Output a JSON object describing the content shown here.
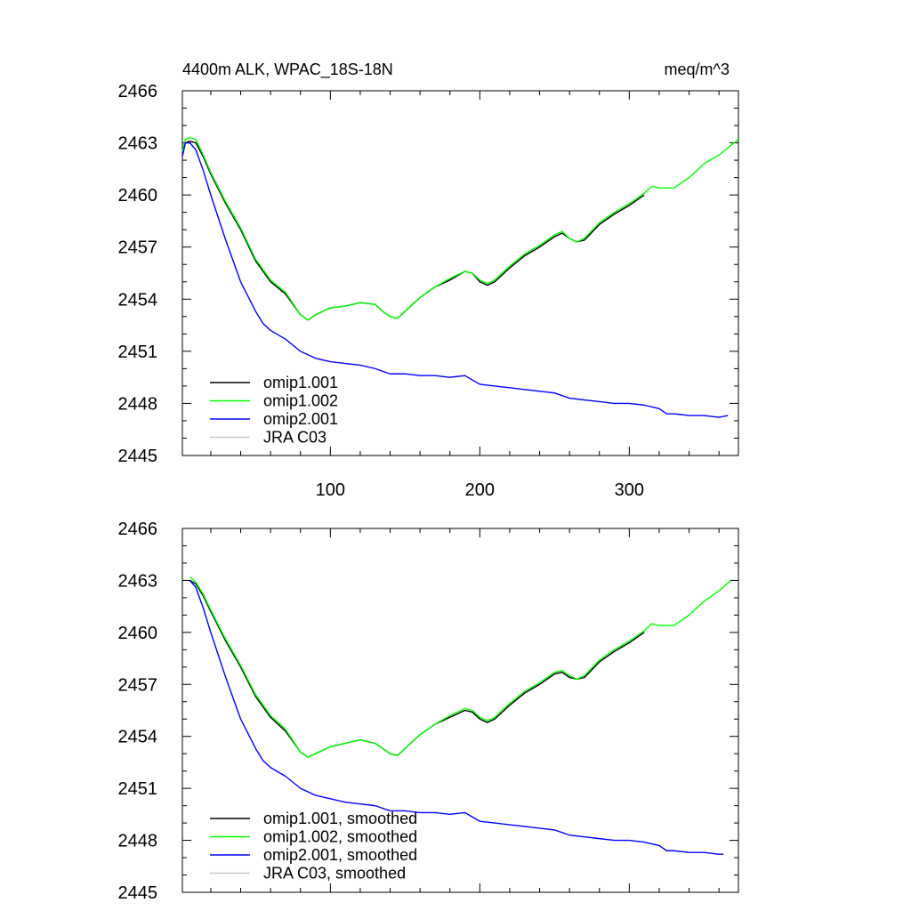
{
  "chart_data": [
    {
      "type": "line",
      "title": "4400m ALK, WPAC_18S-18N",
      "units": "meq/m^3",
      "xlabel": "",
      "ylabel": "",
      "xlim": [
        1,
        373
      ],
      "ylim": [
        2445,
        2466
      ],
      "xticks": [
        100,
        200,
        300
      ],
      "yticks": [
        2445,
        2448,
        2451,
        2454,
        2457,
        2460,
        2463,
        2466
      ],
      "show_x_tick_labels": true,
      "legend": "bottom-left",
      "series": [
        {
          "name": "omip1.001",
          "color": "#000000",
          "x": [
            1,
            3,
            6,
            10,
            15,
            20,
            30,
            40,
            50,
            60,
            70,
            80,
            85,
            90,
            100,
            110,
            120,
            130,
            135,
            140,
            145,
            150,
            160,
            170,
            180,
            190,
            195,
            200,
            205,
            210,
            220,
            230,
            240,
            250,
            255,
            260,
            265,
            270,
            280,
            290,
            300,
            310
          ],
          "values": [
            2462.3,
            2463.0,
            2463.1,
            2463.0,
            2462.2,
            2461.2,
            2459.5,
            2458.0,
            2456.2,
            2455.0,
            2454.3,
            2453.1,
            2452.8,
            2453.1,
            2453.5,
            2453.6,
            2453.8,
            2453.7,
            2453.3,
            2453.0,
            2452.9,
            2453.3,
            2454.1,
            2454.7,
            2455.1,
            2455.6,
            2455.5,
            2455.0,
            2454.8,
            2455.0,
            2455.8,
            2456.5,
            2457.0,
            2457.6,
            2457.8,
            2457.5,
            2457.3,
            2457.4,
            2458.3,
            2458.9,
            2459.4,
            2460.0
          ]
        },
        {
          "name": "omip1.002",
          "color": "#00ff00",
          "x": [
            1,
            3,
            6,
            10,
            15,
            20,
            30,
            40,
            50,
            60,
            70,
            80,
            85,
            90,
            100,
            110,
            120,
            130,
            135,
            140,
            145,
            150,
            160,
            170,
            180,
            190,
            195,
            200,
            205,
            210,
            220,
            230,
            240,
            250,
            255,
            260,
            265,
            270,
            280,
            290,
            300,
            310,
            315,
            320,
            330,
            340,
            350,
            360,
            373
          ],
          "values": [
            2462.5,
            2463.2,
            2463.3,
            2463.2,
            2462.3,
            2461.3,
            2459.6,
            2458.1,
            2456.3,
            2455.1,
            2454.4,
            2453.1,
            2452.8,
            2453.1,
            2453.5,
            2453.6,
            2453.8,
            2453.7,
            2453.3,
            2453.0,
            2452.9,
            2453.3,
            2454.1,
            2454.7,
            2455.2,
            2455.6,
            2455.5,
            2455.1,
            2454.9,
            2455.1,
            2455.9,
            2456.6,
            2457.1,
            2457.7,
            2457.9,
            2457.5,
            2457.3,
            2457.5,
            2458.4,
            2459.0,
            2459.5,
            2460.1,
            2460.5,
            2460.4,
            2460.4,
            2461.0,
            2461.8,
            2462.3,
            2463.2
          ]
        },
        {
          "name": "omip2.001",
          "color": "#0000ff",
          "x": [
            1,
            3,
            6,
            10,
            15,
            20,
            30,
            40,
            50,
            55,
            60,
            70,
            80,
            90,
            100,
            110,
            120,
            130,
            140,
            150,
            160,
            170,
            180,
            190,
            200,
            210,
            220,
            230,
            240,
            250,
            260,
            270,
            280,
            290,
            300,
            310,
            320,
            325,
            330,
            340,
            350,
            360,
            366
          ],
          "values": [
            2462.2,
            2463.0,
            2463.0,
            2462.6,
            2461.4,
            2460.0,
            2457.4,
            2455.0,
            2453.3,
            2452.6,
            2452.2,
            2451.7,
            2451.0,
            2450.6,
            2450.4,
            2450.3,
            2450.2,
            2450.0,
            2449.7,
            2449.7,
            2449.6,
            2449.6,
            2449.5,
            2449.6,
            2449.1,
            2449.0,
            2448.9,
            2448.8,
            2448.7,
            2448.6,
            2448.3,
            2448.2,
            2448.1,
            2448.0,
            2448.0,
            2447.9,
            2447.7,
            2447.4,
            2447.4,
            2447.3,
            2447.3,
            2447.2,
            2447.3
          ]
        },
        {
          "name": "JRA C03",
          "color": "#c8c8c8",
          "x": [],
          "values": []
        }
      ]
    },
    {
      "type": "line",
      "title": "",
      "xlabel": "",
      "ylabel": "",
      "xlim": [
        1,
        373
      ],
      "ylim": [
        2445,
        2466
      ],
      "xticks": [
        100,
        200,
        300
      ],
      "yticks": [
        2445,
        2448,
        2451,
        2454,
        2457,
        2460,
        2463,
        2466
      ],
      "show_x_tick_labels": false,
      "legend": "bottom-left",
      "series": [
        {
          "name": "omip1.001, smoothed",
          "color": "#000000",
          "x": [
            6,
            10,
            15,
            20,
            30,
            40,
            50,
            60,
            70,
            80,
            85,
            90,
            100,
            110,
            120,
            130,
            135,
            140,
            145,
            150,
            160,
            170,
            180,
            190,
            195,
            200,
            205,
            210,
            220,
            230,
            240,
            250,
            255,
            260,
            265,
            270,
            280,
            290,
            300,
            310
          ],
          "values": [
            2463.0,
            2462.8,
            2462.1,
            2461.2,
            2459.5,
            2458.0,
            2456.3,
            2455.1,
            2454.3,
            2453.1,
            2452.8,
            2453.0,
            2453.4,
            2453.6,
            2453.8,
            2453.6,
            2453.3,
            2453.0,
            2452.9,
            2453.3,
            2454.1,
            2454.7,
            2455.1,
            2455.5,
            2455.4,
            2455.0,
            2454.8,
            2455.0,
            2455.8,
            2456.5,
            2457.0,
            2457.6,
            2457.7,
            2457.4,
            2457.3,
            2457.4,
            2458.3,
            2458.9,
            2459.4,
            2460.0
          ]
        },
        {
          "name": "omip1.002, smoothed",
          "color": "#00ff00",
          "x": [
            6,
            10,
            15,
            20,
            30,
            40,
            50,
            60,
            70,
            80,
            85,
            90,
            100,
            110,
            120,
            130,
            135,
            140,
            145,
            150,
            160,
            170,
            180,
            190,
            195,
            200,
            205,
            210,
            220,
            230,
            240,
            250,
            255,
            260,
            265,
            270,
            280,
            290,
            300,
            310,
            315,
            320,
            330,
            340,
            350,
            360,
            368
          ],
          "values": [
            2463.2,
            2462.9,
            2462.2,
            2461.3,
            2459.6,
            2458.1,
            2456.4,
            2455.2,
            2454.4,
            2453.1,
            2452.8,
            2453.0,
            2453.4,
            2453.6,
            2453.8,
            2453.6,
            2453.3,
            2453.0,
            2452.9,
            2453.3,
            2454.1,
            2454.7,
            2455.2,
            2455.6,
            2455.5,
            2455.1,
            2454.9,
            2455.1,
            2455.9,
            2456.6,
            2457.1,
            2457.7,
            2457.8,
            2457.5,
            2457.3,
            2457.5,
            2458.4,
            2459.0,
            2459.5,
            2460.1,
            2460.5,
            2460.4,
            2460.4,
            2461.0,
            2461.8,
            2462.4,
            2463.0
          ]
        },
        {
          "name": "omip2.001, smoothed",
          "color": "#0000ff",
          "x": [
            6,
            10,
            15,
            20,
            30,
            40,
            50,
            55,
            60,
            70,
            80,
            90,
            100,
            110,
            120,
            130,
            140,
            150,
            160,
            170,
            180,
            190,
            200,
            210,
            220,
            230,
            240,
            250,
            260,
            270,
            280,
            290,
            300,
            310,
            320,
            325,
            330,
            340,
            350,
            360,
            363
          ],
          "values": [
            2463.0,
            2462.6,
            2461.4,
            2460.0,
            2457.4,
            2455.0,
            2453.3,
            2452.6,
            2452.2,
            2451.7,
            2451.0,
            2450.6,
            2450.4,
            2450.2,
            2450.1,
            2450.0,
            2449.7,
            2449.7,
            2449.6,
            2449.6,
            2449.5,
            2449.6,
            2449.1,
            2449.0,
            2448.9,
            2448.8,
            2448.7,
            2448.6,
            2448.3,
            2448.2,
            2448.1,
            2448.0,
            2448.0,
            2447.9,
            2447.7,
            2447.4,
            2447.4,
            2447.3,
            2447.3,
            2447.2,
            2447.2
          ]
        },
        {
          "name": "JRA C03, smoothed",
          "color": "#c8c8c8",
          "x": [],
          "values": []
        }
      ]
    }
  ]
}
